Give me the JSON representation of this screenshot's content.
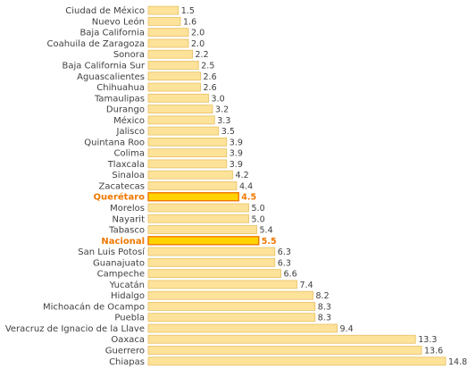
{
  "chart_data": {
    "type": "bar",
    "orientation": "horizontal",
    "categories": [
      "Ciudad de México",
      "Nuevo León",
      "Baja California",
      "Coahuila de Zaragoza",
      "Sonora",
      "Baja California Sur",
      "Aguascalientes",
      "Chihuahua",
      "Tamaulipas",
      "Durango",
      "México",
      "Jalisco",
      "Quintana Roo",
      "Colima",
      "Tlaxcala",
      "Sinaloa",
      "Zacatecas",
      "Querétaro",
      "Morelos",
      "Nayarit",
      "Tabasco",
      "Nacional",
      "San Luis Potosí",
      "Guanajuato",
      "Campeche",
      "Yucatán",
      "Hidalgo",
      "Michoacán de Ocampo",
      "Puebla",
      "Veracruz de Ignacio de la Llave",
      "Oaxaca",
      "Guerrero",
      "Chiapas"
    ],
    "values": [
      1.5,
      1.6,
      2.0,
      2.0,
      2.2,
      2.5,
      2.6,
      2.6,
      3.0,
      3.2,
      3.3,
      3.5,
      3.9,
      3.9,
      3.9,
      4.2,
      4.4,
      4.5,
      5.0,
      5.0,
      5.4,
      5.5,
      6.3,
      6.3,
      6.6,
      7.4,
      8.2,
      8.3,
      8.3,
      9.4,
      13.3,
      13.6,
      14.8
    ],
    "value_labels": [
      "1.5",
      "1.6",
      "2.0",
      "2.0",
      "2.2",
      "2.5",
      "2.6",
      "2.6",
      "3.0",
      "3.2",
      "3.3",
      "3.5",
      "3.9",
      "3.9",
      "3.9",
      "4.2",
      "4.4",
      "4.5",
      "5.0",
      "5.0",
      "5.4",
      "5.5",
      "6.3",
      "6.3",
      "6.6",
      "7.4",
      "8.2",
      "8.3",
      "8.3",
      "9.4",
      "13.3",
      "13.6",
      "14.8"
    ],
    "highlighted": [
      "Querétaro",
      "Nacional"
    ],
    "title": "",
    "xlabel": "",
    "ylabel": "",
    "xlim": [
      0,
      14.8
    ],
    "grid": false,
    "colors": {
      "bar_fill": "#fde29a",
      "bar_stroke": "#e8c060",
      "highlight_fill": "#ffd200",
      "highlight_stroke": "#f07800",
      "label_text": "#404040",
      "highlight_text": "#f07800"
    }
  }
}
